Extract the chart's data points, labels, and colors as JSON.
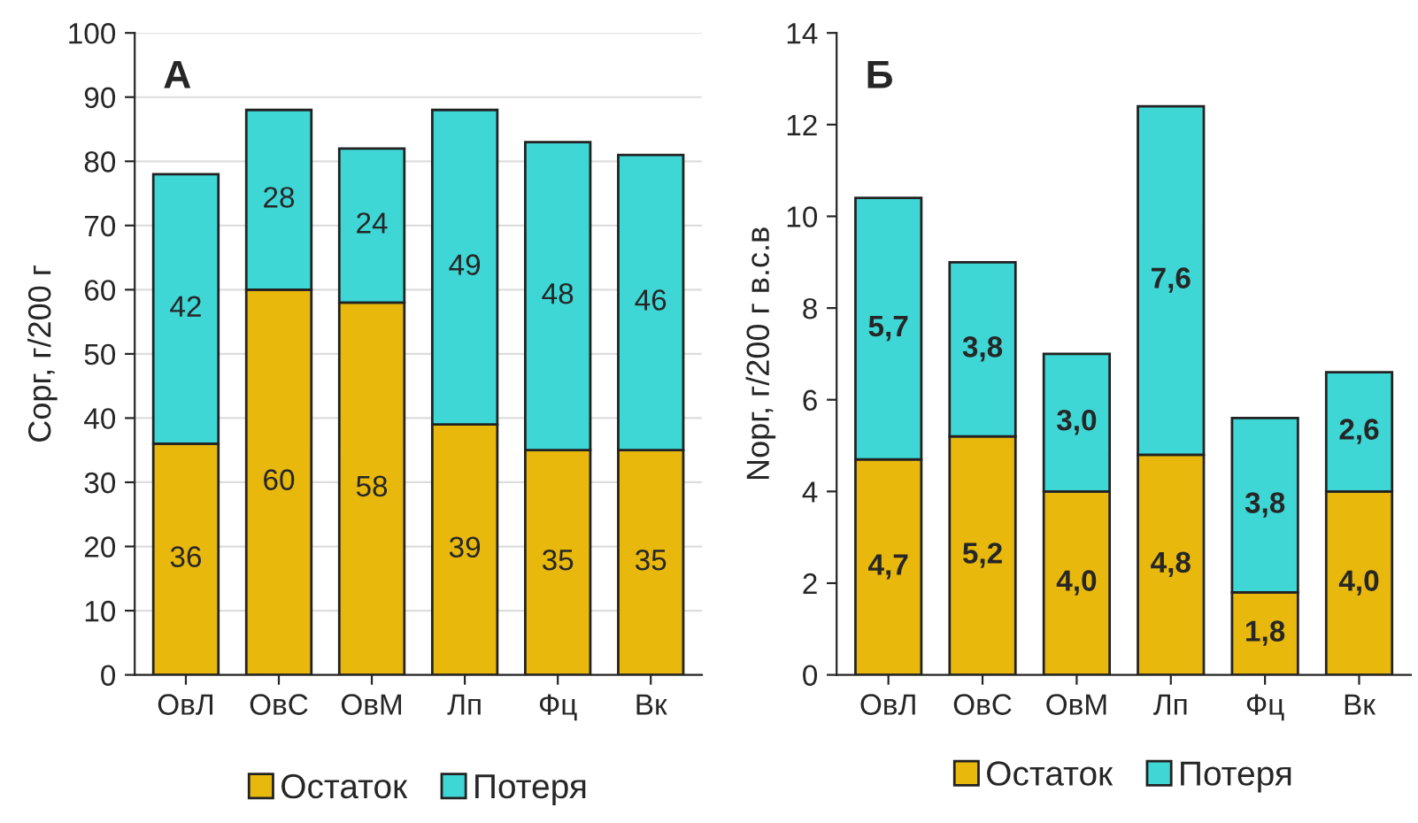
{
  "chart_data": [
    {
      "type": "bar",
      "title": "А",
      "ylabel": "Сорг, г/200 г",
      "categories": [
        "ОвЛ",
        "ОвС",
        "ОвМ",
        "Лп",
        "Фц",
        "Вк"
      ],
      "stacked": true,
      "ylim": [
        0,
        100
      ],
      "yticks": [
        0,
        10,
        20,
        30,
        40,
        50,
        60,
        70,
        80,
        90,
        100
      ],
      "grid": "y",
      "legend": "bottom",
      "series": [
        {
          "name": "Остаток",
          "color": "#e8b80c",
          "values": [
            36,
            60,
            58,
            39,
            35,
            35
          ],
          "value_labels": [
            "36",
            "60",
            "58",
            "39",
            "35",
            "35"
          ]
        },
        {
          "name": "Потеря",
          "color": "#3fd6d6",
          "values": [
            42,
            28,
            24,
            49,
            48,
            46
          ],
          "value_labels": [
            "42",
            "28",
            "24",
            "49",
            "48",
            "46"
          ]
        }
      ]
    },
    {
      "type": "bar",
      "title": "Б",
      "ylabel": "Nорг, г/200 г в.с.в",
      "categories": [
        "ОвЛ",
        "ОвС",
        "ОвМ",
        "Лп",
        "Фц",
        "Вк"
      ],
      "stacked": true,
      "ylim": [
        0,
        14
      ],
      "yticks": [
        0,
        2,
        4,
        6,
        8,
        10,
        12,
        14
      ],
      "grid": false,
      "legend": "bottom",
      "series": [
        {
          "name": "Остаток",
          "color": "#e8b80c",
          "values": [
            4.7,
            5.2,
            4.0,
            4.8,
            1.8,
            4.0
          ],
          "value_labels": [
            "4,7",
            "5,2",
            "4,0",
            "4,8",
            "1,8",
            "4,0"
          ]
        },
        {
          "name": "Потеря",
          "color": "#3fd6d6",
          "values": [
            5.7,
            3.8,
            3.0,
            7.6,
            3.8,
            2.6
          ],
          "value_labels": [
            "5,7",
            "3,8",
            "3,0",
            "7,6",
            "3,8",
            "2,6"
          ]
        }
      ]
    }
  ]
}
